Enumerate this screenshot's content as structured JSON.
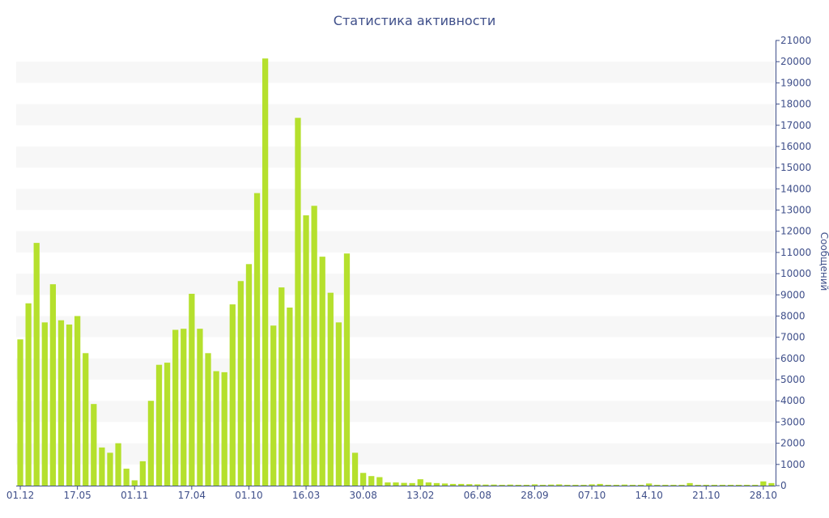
{
  "chart_data": {
    "type": "bar",
    "title": "Статистика активности",
    "xlabel": "",
    "ylabel": "Сообщений",
    "ylim": [
      0,
      21000
    ],
    "yticks": [
      0,
      1000,
      2000,
      3000,
      4000,
      5000,
      6000,
      7000,
      8000,
      9000,
      10000,
      11000,
      12000,
      13000,
      14000,
      15000,
      16000,
      17000,
      18000,
      19000,
      20000,
      21000
    ],
    "grid": "alternating horizontal bands",
    "legend": "none",
    "bar_color": "#b5e02d",
    "band_color": "#f7f7f7",
    "axis_color": "#3f4f8a",
    "x_tick_labels": [
      {
        "index": 0,
        "label": "01.12"
      },
      {
        "index": 7,
        "label": "17.05"
      },
      {
        "index": 14,
        "label": "01.11"
      },
      {
        "index": 21,
        "label": "17.04"
      },
      {
        "index": 28,
        "label": "01.10"
      },
      {
        "index": 35,
        "label": "16.03"
      },
      {
        "index": 42,
        "label": "30.08"
      },
      {
        "index": 49,
        "label": "13.02"
      },
      {
        "index": 56,
        "label": "06.08"
      },
      {
        "index": 63,
        "label": "28.09"
      },
      {
        "index": 70,
        "label": "07.10"
      },
      {
        "index": 77,
        "label": "14.10"
      },
      {
        "index": 84,
        "label": "21.10"
      },
      {
        "index": 91,
        "label": "28.10"
      }
    ],
    "values": [
      6900,
      8600,
      11450,
      7700,
      9500,
      7800,
      7600,
      8000,
      6250,
      3850,
      1800,
      1550,
      2000,
      800,
      250,
      1150,
      4000,
      5700,
      5800,
      7350,
      7400,
      9050,
      7400,
      6250,
      5400,
      5350,
      8550,
      9650,
      10450,
      13800,
      20150,
      7550,
      9350,
      8400,
      17350,
      12750,
      13200,
      10800,
      9100,
      7700,
      10950,
      1550,
      600,
      450,
      400,
      150,
      150,
      130,
      120,
      300,
      150,
      120,
      100,
      80,
      80,
      70,
      60,
      50,
      50,
      40,
      50,
      40,
      40,
      60,
      40,
      50,
      60,
      40,
      40,
      40,
      60,
      80,
      40,
      40,
      50,
      40,
      40,
      100,
      40,
      40,
      40,
      40,
      120,
      40,
      40,
      40,
      40,
      40,
      40,
      40,
      40,
      200,
      120
    ]
  }
}
